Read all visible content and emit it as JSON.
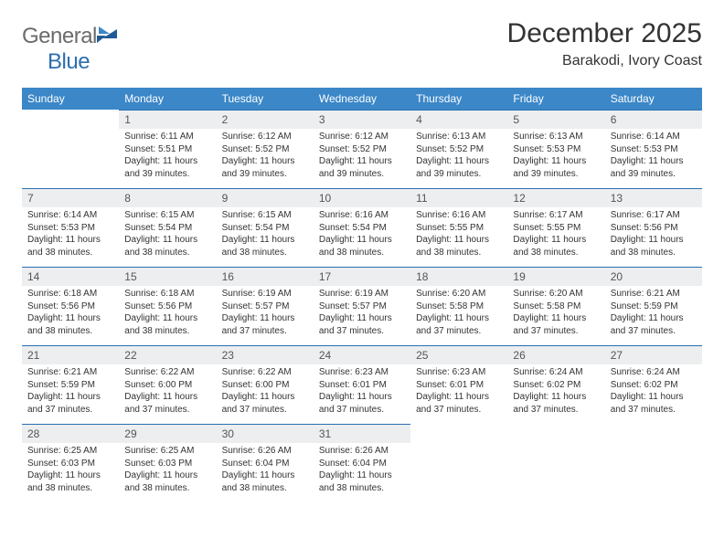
{
  "logo": {
    "text_a": "General",
    "text_b": "Blue"
  },
  "title": "December 2025",
  "location": "Barakodi, Ivory Coast",
  "colors": {
    "header_bg": "#3b87c8",
    "header_fg": "#ffffff",
    "daynum_bg": "#eceeef",
    "daynum_fg": "#555555",
    "border": "#2b6fb0",
    "text": "#333333",
    "logo_gray": "#6b6b6b",
    "logo_blue": "#2b6fb0"
  },
  "weekdays": [
    "Sunday",
    "Monday",
    "Tuesday",
    "Wednesday",
    "Thursday",
    "Friday",
    "Saturday"
  ],
  "weeks": [
    [
      {
        "n": "",
        "sunrise": "",
        "sunset": "",
        "daylight": ""
      },
      {
        "n": "1",
        "sunrise": "Sunrise: 6:11 AM",
        "sunset": "Sunset: 5:51 PM",
        "daylight": "Daylight: 11 hours and 39 minutes."
      },
      {
        "n": "2",
        "sunrise": "Sunrise: 6:12 AM",
        "sunset": "Sunset: 5:52 PM",
        "daylight": "Daylight: 11 hours and 39 minutes."
      },
      {
        "n": "3",
        "sunrise": "Sunrise: 6:12 AM",
        "sunset": "Sunset: 5:52 PM",
        "daylight": "Daylight: 11 hours and 39 minutes."
      },
      {
        "n": "4",
        "sunrise": "Sunrise: 6:13 AM",
        "sunset": "Sunset: 5:52 PM",
        "daylight": "Daylight: 11 hours and 39 minutes."
      },
      {
        "n": "5",
        "sunrise": "Sunrise: 6:13 AM",
        "sunset": "Sunset: 5:53 PM",
        "daylight": "Daylight: 11 hours and 39 minutes."
      },
      {
        "n": "6",
        "sunrise": "Sunrise: 6:14 AM",
        "sunset": "Sunset: 5:53 PM",
        "daylight": "Daylight: 11 hours and 39 minutes."
      }
    ],
    [
      {
        "n": "7",
        "sunrise": "Sunrise: 6:14 AM",
        "sunset": "Sunset: 5:53 PM",
        "daylight": "Daylight: 11 hours and 38 minutes."
      },
      {
        "n": "8",
        "sunrise": "Sunrise: 6:15 AM",
        "sunset": "Sunset: 5:54 PM",
        "daylight": "Daylight: 11 hours and 38 minutes."
      },
      {
        "n": "9",
        "sunrise": "Sunrise: 6:15 AM",
        "sunset": "Sunset: 5:54 PM",
        "daylight": "Daylight: 11 hours and 38 minutes."
      },
      {
        "n": "10",
        "sunrise": "Sunrise: 6:16 AM",
        "sunset": "Sunset: 5:54 PM",
        "daylight": "Daylight: 11 hours and 38 minutes."
      },
      {
        "n": "11",
        "sunrise": "Sunrise: 6:16 AM",
        "sunset": "Sunset: 5:55 PM",
        "daylight": "Daylight: 11 hours and 38 minutes."
      },
      {
        "n": "12",
        "sunrise": "Sunrise: 6:17 AM",
        "sunset": "Sunset: 5:55 PM",
        "daylight": "Daylight: 11 hours and 38 minutes."
      },
      {
        "n": "13",
        "sunrise": "Sunrise: 6:17 AM",
        "sunset": "Sunset: 5:56 PM",
        "daylight": "Daylight: 11 hours and 38 minutes."
      }
    ],
    [
      {
        "n": "14",
        "sunrise": "Sunrise: 6:18 AM",
        "sunset": "Sunset: 5:56 PM",
        "daylight": "Daylight: 11 hours and 38 minutes."
      },
      {
        "n": "15",
        "sunrise": "Sunrise: 6:18 AM",
        "sunset": "Sunset: 5:56 PM",
        "daylight": "Daylight: 11 hours and 38 minutes."
      },
      {
        "n": "16",
        "sunrise": "Sunrise: 6:19 AM",
        "sunset": "Sunset: 5:57 PM",
        "daylight": "Daylight: 11 hours and 37 minutes."
      },
      {
        "n": "17",
        "sunrise": "Sunrise: 6:19 AM",
        "sunset": "Sunset: 5:57 PM",
        "daylight": "Daylight: 11 hours and 37 minutes."
      },
      {
        "n": "18",
        "sunrise": "Sunrise: 6:20 AM",
        "sunset": "Sunset: 5:58 PM",
        "daylight": "Daylight: 11 hours and 37 minutes."
      },
      {
        "n": "19",
        "sunrise": "Sunrise: 6:20 AM",
        "sunset": "Sunset: 5:58 PM",
        "daylight": "Daylight: 11 hours and 37 minutes."
      },
      {
        "n": "20",
        "sunrise": "Sunrise: 6:21 AM",
        "sunset": "Sunset: 5:59 PM",
        "daylight": "Daylight: 11 hours and 37 minutes."
      }
    ],
    [
      {
        "n": "21",
        "sunrise": "Sunrise: 6:21 AM",
        "sunset": "Sunset: 5:59 PM",
        "daylight": "Daylight: 11 hours and 37 minutes."
      },
      {
        "n": "22",
        "sunrise": "Sunrise: 6:22 AM",
        "sunset": "Sunset: 6:00 PM",
        "daylight": "Daylight: 11 hours and 37 minutes."
      },
      {
        "n": "23",
        "sunrise": "Sunrise: 6:22 AM",
        "sunset": "Sunset: 6:00 PM",
        "daylight": "Daylight: 11 hours and 37 minutes."
      },
      {
        "n": "24",
        "sunrise": "Sunrise: 6:23 AM",
        "sunset": "Sunset: 6:01 PM",
        "daylight": "Daylight: 11 hours and 37 minutes."
      },
      {
        "n": "25",
        "sunrise": "Sunrise: 6:23 AM",
        "sunset": "Sunset: 6:01 PM",
        "daylight": "Daylight: 11 hours and 37 minutes."
      },
      {
        "n": "26",
        "sunrise": "Sunrise: 6:24 AM",
        "sunset": "Sunset: 6:02 PM",
        "daylight": "Daylight: 11 hours and 37 minutes."
      },
      {
        "n": "27",
        "sunrise": "Sunrise: 6:24 AM",
        "sunset": "Sunset: 6:02 PM",
        "daylight": "Daylight: 11 hours and 37 minutes."
      }
    ],
    [
      {
        "n": "28",
        "sunrise": "Sunrise: 6:25 AM",
        "sunset": "Sunset: 6:03 PM",
        "daylight": "Daylight: 11 hours and 38 minutes."
      },
      {
        "n": "29",
        "sunrise": "Sunrise: 6:25 AM",
        "sunset": "Sunset: 6:03 PM",
        "daylight": "Daylight: 11 hours and 38 minutes."
      },
      {
        "n": "30",
        "sunrise": "Sunrise: 6:26 AM",
        "sunset": "Sunset: 6:04 PM",
        "daylight": "Daylight: 11 hours and 38 minutes."
      },
      {
        "n": "31",
        "sunrise": "Sunrise: 6:26 AM",
        "sunset": "Sunset: 6:04 PM",
        "daylight": "Daylight: 11 hours and 38 minutes."
      },
      {
        "n": "",
        "sunrise": "",
        "sunset": "",
        "daylight": ""
      },
      {
        "n": "",
        "sunrise": "",
        "sunset": "",
        "daylight": ""
      },
      {
        "n": "",
        "sunrise": "",
        "sunset": "",
        "daylight": ""
      }
    ]
  ]
}
